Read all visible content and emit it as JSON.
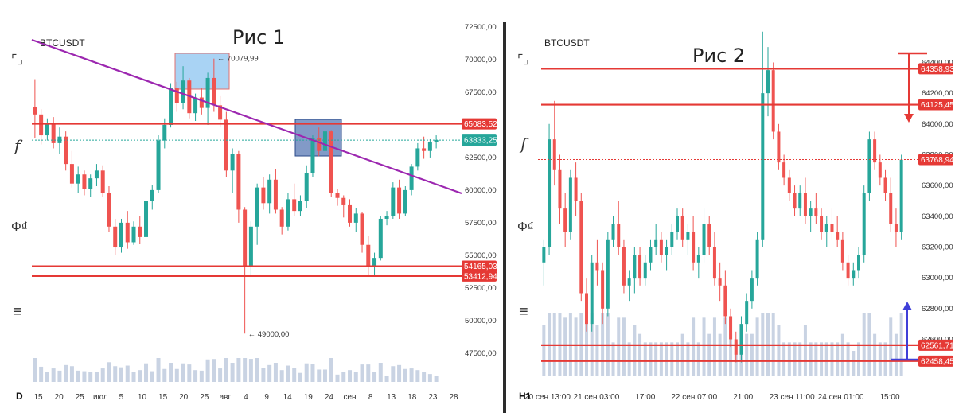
{
  "chart_data": [
    {
      "type": "candlestick",
      "title": "Рис 1",
      "symbol": "BTCUSDT",
      "timeframe": "D",
      "ylim": [
        47000,
        72500
      ],
      "y_ticks": [
        "72500,00",
        "70000,00",
        "67500,00",
        "65000,00",
        "62500,00",
        "60000,00",
        "57500,00",
        "55000,00",
        "52500,00",
        "50000,00",
        "47500,00"
      ],
      "x_ticks": [
        "15",
        "20",
        "25",
        "июл",
        "5",
        "10",
        "15",
        "20",
        "25",
        "авг",
        "4",
        "9",
        "14",
        "19",
        "24",
        "сен",
        "8",
        "13",
        "18",
        "23",
        "28"
      ],
      "levels": [
        {
          "value": 65083.52,
          "label": "65083,52",
          "color": "#e53935"
        },
        {
          "value": 54165.03,
          "label": "54165,03",
          "color": "#e53935"
        },
        {
          "value": 53412.94,
          "label": "53412,94",
          "color": "#e53935"
        }
      ],
      "last_price": {
        "value": 63833.25,
        "label": "63833,25",
        "color": "#26a69a"
      },
      "annotations": [
        {
          "text": "70079,99",
          "value": 70079.99
        },
        {
          "text": "49000,00",
          "value": 49000.0
        }
      ],
      "trendline_color": "#9c27b0",
      "candles": [
        [
          66400,
          68500,
          64000,
          65800
        ],
        [
          65800,
          66200,
          63500,
          64200
        ],
        [
          64200,
          65500,
          63800,
          65100
        ],
        [
          65100,
          65600,
          63200,
          63600
        ],
        [
          63600,
          64800,
          62800,
          64100
        ],
        [
          64100,
          64500,
          61500,
          62000
        ],
        [
          62000,
          63000,
          60200,
          60500
        ],
        [
          60500,
          61800,
          59800,
          61200
        ],
        [
          61200,
          61500,
          59600,
          60100
        ],
        [
          60100,
          61200,
          59500,
          60900
        ],
        [
          60900,
          62000,
          60300,
          61500
        ],
        [
          61500,
          61900,
          59500,
          59800
        ],
        [
          59800,
          60300,
          56800,
          57200
        ],
        [
          57200,
          57800,
          55000,
          55600
        ],
        [
          55600,
          57800,
          55200,
          57500
        ],
        [
          57500,
          58400,
          55500,
          56000
        ],
        [
          56000,
          57600,
          55800,
          57200
        ],
        [
          57200,
          58000,
          55900,
          56400
        ],
        [
          56400,
          59500,
          56200,
          59200
        ],
        [
          59200,
          60400,
          58500,
          60000
        ],
        [
          60000,
          64200,
          59800,
          63800
        ],
        [
          63800,
          65500,
          63200,
          65000
        ],
        [
          65000,
          68200,
          64800,
          67800
        ],
        [
          67800,
          68300,
          66000,
          66700
        ],
        [
          66700,
          69500,
          66200,
          68400
        ],
        [
          68400,
          68600,
          65500,
          65900
        ],
        [
          65900,
          67400,
          65300,
          67100
        ],
        [
          67100,
          67800,
          65800,
          66300
        ],
        [
          66300,
          69000,
          65000,
          68600
        ],
        [
          68600,
          70079,
          66000,
          66500
        ],
        [
          66500,
          67200,
          64800,
          65400
        ],
        [
          65400,
          66000,
          61000,
          61500
        ],
        [
          61500,
          63200,
          59800,
          62800
        ],
        [
          62800,
          63000,
          57500,
          58500
        ],
        [
          58500,
          58700,
          49000,
          54200
        ],
        [
          54200,
          57600,
          53500,
          57200
        ],
        [
          57200,
          60500,
          55800,
          60200
        ],
        [
          60200,
          61000,
          58500,
          59000
        ],
        [
          59000,
          61200,
          58200,
          60800
        ],
        [
          60800,
          61600,
          58200,
          58500
        ],
        [
          58500,
          58700,
          56600,
          57200
        ],
        [
          57200,
          59800,
          56900,
          59300
        ],
        [
          59300,
          60500,
          58000,
          58400
        ],
        [
          58400,
          59600,
          58000,
          59200
        ],
        [
          59200,
          61900,
          58600,
          61300
        ],
        [
          61300,
          64200,
          61000,
          64000
        ],
        [
          64000,
          64800,
          62600,
          63000
        ],
        [
          63000,
          64700,
          62500,
          64500
        ],
        [
          64500,
          64600,
          59500,
          59800
        ],
        [
          59800,
          60100,
          58800,
          59400
        ],
        [
          59400,
          59600,
          57900,
          58900
        ],
        [
          58900,
          59300,
          57200,
          57500
        ],
        [
          57500,
          58600,
          56800,
          58200
        ],
        [
          58200,
          58300,
          55200,
          55800
        ],
        [
          55800,
          56500,
          53400,
          54100
        ],
        [
          54100,
          55200,
          53500,
          54800
        ],
        [
          54800,
          58000,
          54600,
          57800
        ],
        [
          57800,
          58400,
          57300,
          58000
        ],
        [
          58000,
          60600,
          57800,
          60200
        ],
        [
          60200,
          60800,
          57800,
          58200
        ],
        [
          58200,
          60300,
          58000,
          60000
        ],
        [
          60000,
          62000,
          59600,
          61800
        ],
        [
          61800,
          63600,
          61500,
          63200
        ],
        [
          63200,
          64100,
          62400,
          63000
        ],
        [
          63000,
          63900,
          62500,
          63700
        ],
        [
          63700,
          64200,
          63200,
          63833
        ]
      ]
    },
    {
      "type": "candlestick",
      "title": "Рис 2",
      "symbol": "BTCUSDT",
      "timeframe": "H1",
      "ylim": [
        62380,
        64630
      ],
      "y_ticks": [
        "64400,00",
        "64200,00",
        "64000,00",
        "63800,00",
        "63600,00",
        "63400,00",
        "63200,00",
        "63000,00",
        "62800,00",
        "62600,00"
      ],
      "x_ticks": [
        "20 сен 13:00",
        "21 сен 03:00",
        "17:00",
        "22 сен 07:00",
        "21:00",
        "23 сен 11:00",
        "24 сен 01:00",
        "15:00"
      ],
      "levels": [
        {
          "value": 64358.93,
          "label": "64358,93",
          "color": "#e53935"
        },
        {
          "value": 64125.45,
          "label": "64125,45",
          "color": "#e53935"
        },
        {
          "value": 62561.71,
          "label": "62561,71",
          "color": "#e53935"
        },
        {
          "value": 62458.45,
          "label": "62458,45",
          "color": "#e53935"
        }
      ],
      "last_price": {
        "value": 63768.94,
        "label": "63768,94",
        "color": "#e53935"
      },
      "candles": [
        [
          63100,
          63250,
          62950,
          63200
        ],
        [
          63200,
          64000,
          63150,
          63900
        ],
        [
          63900,
          64150,
          63600,
          63700
        ],
        [
          63700,
          63800,
          63350,
          63450
        ],
        [
          63450,
          63550,
          63200,
          63300
        ],
        [
          63300,
          63700,
          63250,
          63650
        ],
        [
          63650,
          63750,
          63400,
          63500
        ],
        [
          63500,
          63550,
          62850,
          62900
        ],
        [
          62900,
          63000,
          62650,
          62700
        ],
        [
          62700,
          63150,
          62650,
          63100
        ],
        [
          63100,
          63250,
          62950,
          63050
        ],
        [
          63050,
          63100,
          62700,
          62800
        ],
        [
          62800,
          63300,
          62750,
          63250
        ],
        [
          63250,
          63400,
          63200,
          63350
        ],
        [
          63350,
          63500,
          63150,
          63200
        ],
        [
          63200,
          63250,
          62900,
          62950
        ],
        [
          62950,
          63050,
          62850,
          63000
        ],
        [
          63000,
          63200,
          62900,
          63150
        ],
        [
          63150,
          63200,
          62950,
          63000
        ],
        [
          63000,
          63150,
          62950,
          63100
        ],
        [
          63100,
          63250,
          63050,
          63200
        ],
        [
          63200,
          63350,
          63150,
          63250
        ],
        [
          63250,
          63300,
          63100,
          63150
        ],
        [
          63150,
          63250,
          63050,
          63200
        ],
        [
          63200,
          63350,
          63150,
          63300
        ],
        [
          63300,
          63450,
          63250,
          63400
        ],
        [
          63400,
          63450,
          63200,
          63250
        ],
        [
          63250,
          63350,
          63150,
          63300
        ],
        [
          63300,
          63400,
          63050,
          63100
        ],
        [
          63100,
          63200,
          63000,
          63150
        ],
        [
          63150,
          63450,
          63100,
          63350
        ],
        [
          63350,
          63400,
          63150,
          63200
        ],
        [
          63200,
          63300,
          62950,
          63000
        ],
        [
          63000,
          63100,
          62850,
          62950
        ],
        [
          62950,
          63050,
          62700,
          62750
        ],
        [
          62750,
          62800,
          62550,
          62600
        ],
        [
          62600,
          62650,
          62450,
          62500
        ],
        [
          62500,
          62750,
          62450,
          62700
        ],
        [
          62700,
          62900,
          62650,
          62850
        ],
        [
          62850,
          63050,
          62800,
          63000
        ],
        [
          63000,
          63300,
          62950,
          63250
        ],
        [
          63250,
          64600,
          63200,
          64200
        ],
        [
          64200,
          64500,
          64050,
          64350
        ],
        [
          64350,
          64400,
          63900,
          63950
        ],
        [
          63950,
          64000,
          63700,
          63750
        ],
        [
          63750,
          63800,
          63600,
          63650
        ],
        [
          63650,
          63700,
          63500,
          63550
        ],
        [
          63550,
          63600,
          63400,
          63450
        ],
        [
          63450,
          63600,
          63400,
          63550
        ],
        [
          63550,
          63650,
          63350,
          63400
        ],
        [
          63400,
          63500,
          63300,
          63450
        ],
        [
          63450,
          63550,
          63350,
          63400
        ],
        [
          63400,
          63450,
          63250,
          63300
        ],
        [
          63300,
          63400,
          63200,
          63350
        ],
        [
          63350,
          63450,
          63250,
          63300
        ],
        [
          63300,
          63400,
          63200,
          63250
        ],
        [
          63250,
          63300,
          63050,
          63100
        ],
        [
          63100,
          63150,
          62950,
          63000
        ],
        [
          63000,
          63100,
          62950,
          63050
        ],
        [
          63050,
          63200,
          63000,
          63150
        ],
        [
          63150,
          63600,
          63100,
          63550
        ],
        [
          63550,
          63950,
          63500,
          63900
        ],
        [
          63900,
          63950,
          63700,
          63750
        ],
        [
          63750,
          63800,
          63600,
          63650
        ],
        [
          63650,
          63700,
          63500,
          63550
        ],
        [
          63550,
          63650,
          63300,
          63350
        ],
        [
          63350,
          63450,
          63200,
          63300
        ],
        [
          63300,
          63800,
          63250,
          63768
        ]
      ]
    }
  ],
  "toolbar": {
    "icons": [
      "fullscreen-icon",
      "fx-icon",
      "compare-icon",
      "settings-icon"
    ],
    "fx_glyph": "f",
    "compare_glyph": "Φ₫",
    "fullscreen_glyph": "⌜⌟",
    "settings_glyph": "≡"
  },
  "colors": {
    "up": "#26a69a",
    "down": "#ef5350",
    "volume": "#c9d3e3",
    "level": "#e53935",
    "trend": "#9c27b0",
    "arrow_up": "#3f3fd8",
    "box_light": "#8cc4f0",
    "box_dark": "#5878b4"
  }
}
